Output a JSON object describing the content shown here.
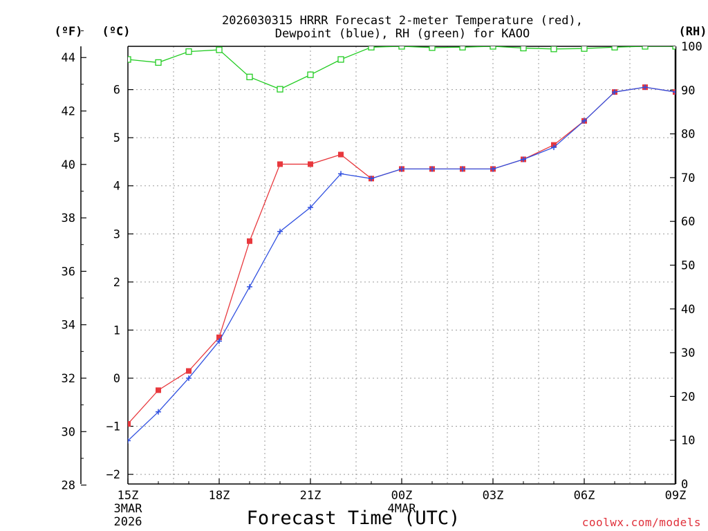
{
  "chart_data": {
    "type": "line",
    "title_line1": "2026030315 HRRR Forecast 2-meter Temperature (red),",
    "title_line2": "Dewpoint (blue), RH (green) for KAOO",
    "xlabel": "Forecast Time (UTC)",
    "credit": "coolwx.com/models",
    "unit_f": "(ºF)",
    "unit_c": "(ºC)",
    "unit_rh": "(RH)",
    "x_hours": [
      0,
      1,
      2,
      3,
      4,
      5,
      6,
      7,
      8,
      9,
      10,
      11,
      12,
      13,
      14,
      15,
      16,
      17,
      18
    ],
    "x_ticks": [
      {
        "hour": 0,
        "label": "15Z",
        "sub1": "3MAR",
        "sub2": "2026"
      },
      {
        "hour": 3,
        "label": "18Z",
        "sub1": "",
        "sub2": ""
      },
      {
        "hour": 6,
        "label": "21Z",
        "sub1": "",
        "sub2": ""
      },
      {
        "hour": 9,
        "label": "00Z",
        "sub1": "4MAR",
        "sub2": ""
      },
      {
        "hour": 12,
        "label": "03Z",
        "sub1": "",
        "sub2": ""
      },
      {
        "hour": 15,
        "label": "06Z",
        "sub1": "",
        "sub2": ""
      },
      {
        "hour": 18,
        "label": "09Z",
        "sub1": "",
        "sub2": ""
      }
    ],
    "y_celsius": {
      "range": [
        -2.2,
        6.9
      ],
      "ticks": [
        -2,
        -1,
        0,
        1,
        2,
        3,
        4,
        5,
        6
      ]
    },
    "y_fahrenheit": {
      "ticks": [
        28,
        30,
        32,
        34,
        36,
        38,
        40,
        42,
        44
      ]
    },
    "y_rh": {
      "range": [
        0,
        100
      ],
      "ticks": [
        0,
        10,
        20,
        30,
        40,
        50,
        60,
        70,
        80,
        90,
        100
      ]
    },
    "series": [
      {
        "name": "Temperature",
        "color": "#e8383d",
        "unit": "C",
        "marker": "filled-square",
        "values": [
          -0.95,
          -0.25,
          0.15,
          0.85,
          2.85,
          4.45,
          4.45,
          4.65,
          4.15,
          4.35,
          4.35,
          4.35,
          4.35,
          4.55,
          4.85,
          5.35,
          5.95,
          6.05,
          5.95
        ]
      },
      {
        "name": "Dewpoint",
        "color": "#3050e0",
        "unit": "C",
        "marker": "plus",
        "values": [
          -1.3,
          -0.7,
          0.0,
          0.77,
          1.9,
          3.05,
          3.55,
          4.25,
          4.15,
          4.35,
          4.35,
          4.35,
          4.35,
          4.55,
          4.8,
          5.35,
          5.95,
          6.05,
          5.95
        ]
      },
      {
        "name": "RH",
        "color": "#22cc22",
        "unit": "%",
        "marker": "open-square",
        "values": [
          97,
          96.3,
          98.8,
          99.2,
          93,
          90.2,
          93.5,
          97,
          99.8,
          100,
          99.7,
          99.8,
          100,
          99.6,
          99.4,
          99.5,
          99.8,
          100,
          100
        ]
      }
    ]
  }
}
